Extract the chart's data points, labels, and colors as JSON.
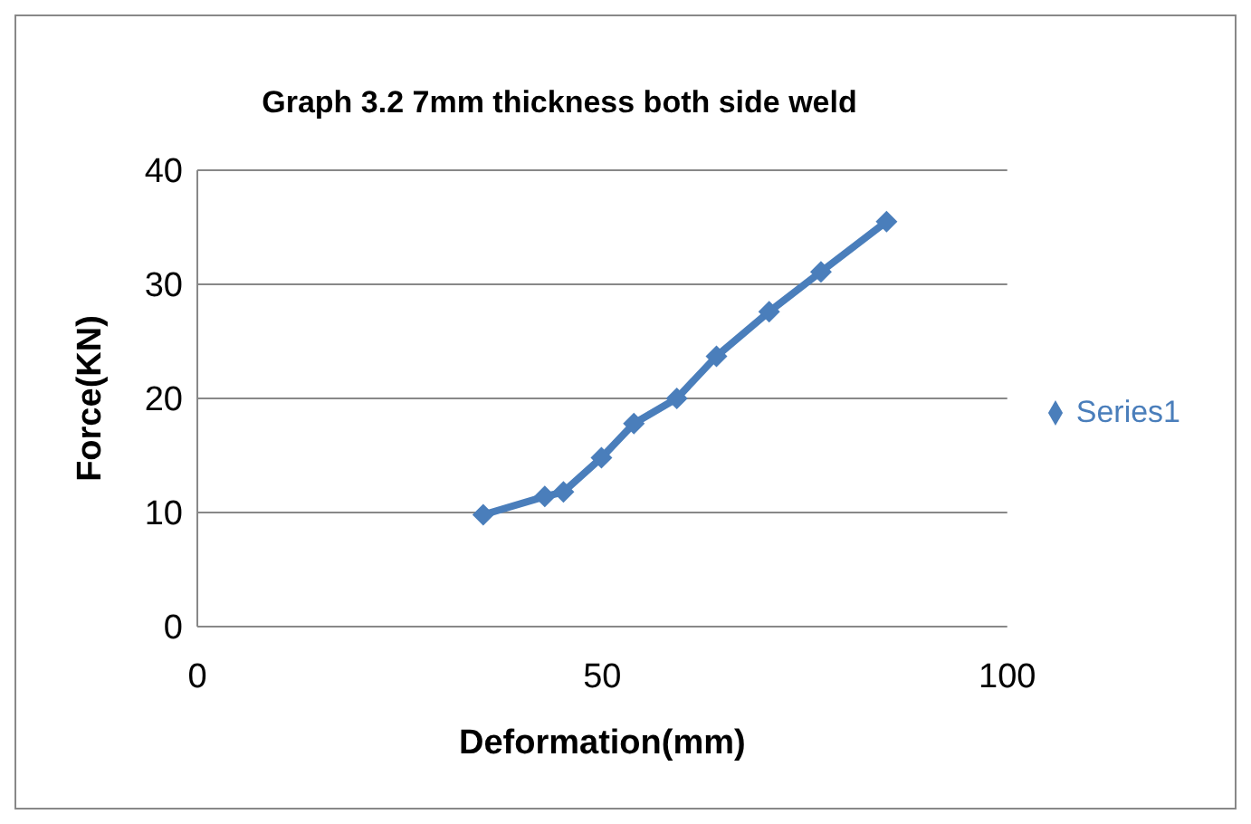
{
  "chart_data": {
    "type": "line",
    "title": "Graph 3.2 7mm thickness both side weld",
    "xlabel": "Deformation(mm)",
    "ylabel": "Force(KN)",
    "x": [
      35.3,
      42.9,
      45.2,
      49.9,
      53.9,
      59.2,
      64.1,
      70.6,
      77,
      85.1
    ],
    "series": [
      {
        "name": "Series1",
        "color": "#4a7ebb",
        "values": [
          9.8,
          11.4,
          11.8,
          14.8,
          17.8,
          20,
          23.7,
          27.6,
          31.1,
          35.5
        ]
      }
    ],
    "xlim": [
      0,
      100
    ],
    "xticks": [
      0,
      50,
      100
    ],
    "ylim": [
      0,
      40
    ],
    "yticks": [
      0,
      10,
      20,
      30,
      40
    ],
    "grid": "y",
    "legend": "right",
    "marker": "diamond",
    "line_style": "solid"
  }
}
